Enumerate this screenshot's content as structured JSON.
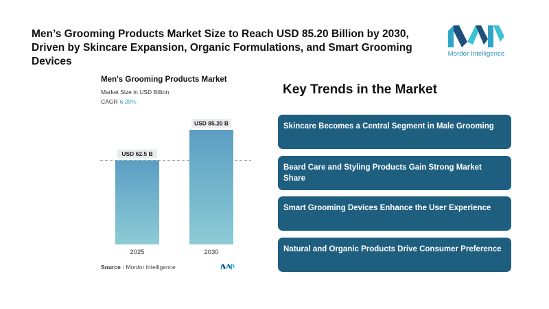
{
  "headline": "Men’s Grooming Products Market Size to Reach USD 85.20 Billion by 2030, Driven by Skincare Expansion, Organic Formulations, and Smart Grooming Devices",
  "logo": {
    "text": "Mordor Intelligence",
    "icon": "mordor-intelligence-logo-icon",
    "color": "#2a8fb8"
  },
  "chart_data": {
    "type": "bar",
    "title": "Men's Grooming Products Market",
    "subtitle": "Market Size in USD Billion",
    "cagr_label": "CAGR",
    "cagr_value": "6.39%",
    "categories": [
      "2025",
      "2030"
    ],
    "values": [
      62.5,
      85.2
    ],
    "data_labels": [
      "USD 62.5 B",
      "USD 85.20 B"
    ],
    "ylim": [
      0,
      100
    ],
    "reference_line": "dashed line at 2025 value",
    "bar_gradient": [
      "#5b9ec3",
      "#8dcbd6"
    ],
    "xlabel": "",
    "ylabel": ""
  },
  "source": {
    "label": "Source :",
    "text": "Mordor Intelligence"
  },
  "trends": {
    "heading": "Key Trends in the Market",
    "card_color": "#1e5f80",
    "items": [
      "Skincare Becomes a Central Segment in Male Grooming",
      "Beard Care and Styling Products Gain Strong Market Share",
      "Smart Grooming Devices Enhance the User Experience",
      "Natural and Organic Products Drive Consumer Preference"
    ]
  }
}
